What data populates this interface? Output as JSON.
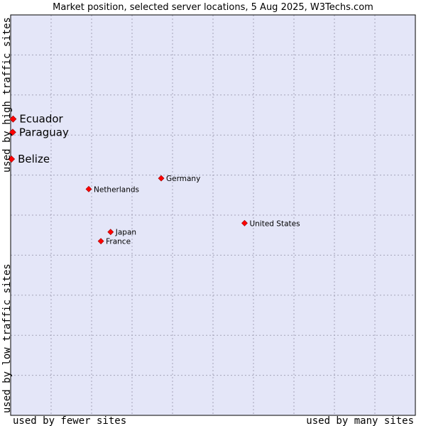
{
  "chart_data": {
    "type": "scatter",
    "title": "Market position, selected server locations, 5 Aug 2025, W3Techs.com",
    "x_axis": {
      "low_label": "used by fewer sites",
      "high_label": "used by many sites",
      "range": [
        0,
        1
      ]
    },
    "y_axis": {
      "low_label": "used by low traffic sites",
      "high_label": "used by high traffic sites",
      "range": [
        0,
        1
      ]
    },
    "grid": true,
    "points": [
      {
        "name": "Ecuador",
        "x": 0.006,
        "y": 0.74,
        "emphasis": true
      },
      {
        "name": "Paraguay",
        "x": 0.005,
        "y": 0.707,
        "emphasis": true
      },
      {
        "name": "Belize",
        "x": 0.002,
        "y": 0.64,
        "emphasis": true
      },
      {
        "name": "Germany",
        "x": 0.372,
        "y": 0.592,
        "emphasis": false
      },
      {
        "name": "Netherlands",
        "x": 0.193,
        "y": 0.565,
        "emphasis": false
      },
      {
        "name": "United States",
        "x": 0.578,
        "y": 0.48,
        "emphasis": false
      },
      {
        "name": "Japan",
        "x": 0.247,
        "y": 0.458,
        "emphasis": false
      },
      {
        "name": "France",
        "x": 0.223,
        "y": 0.435,
        "emphasis": false
      }
    ],
    "colors": {
      "plot_bg": "#e4e6f8",
      "grid": "#a3a3b8",
      "marker": "#ff0000",
      "marker_edge": "#990000",
      "frame": "#000000"
    }
  }
}
